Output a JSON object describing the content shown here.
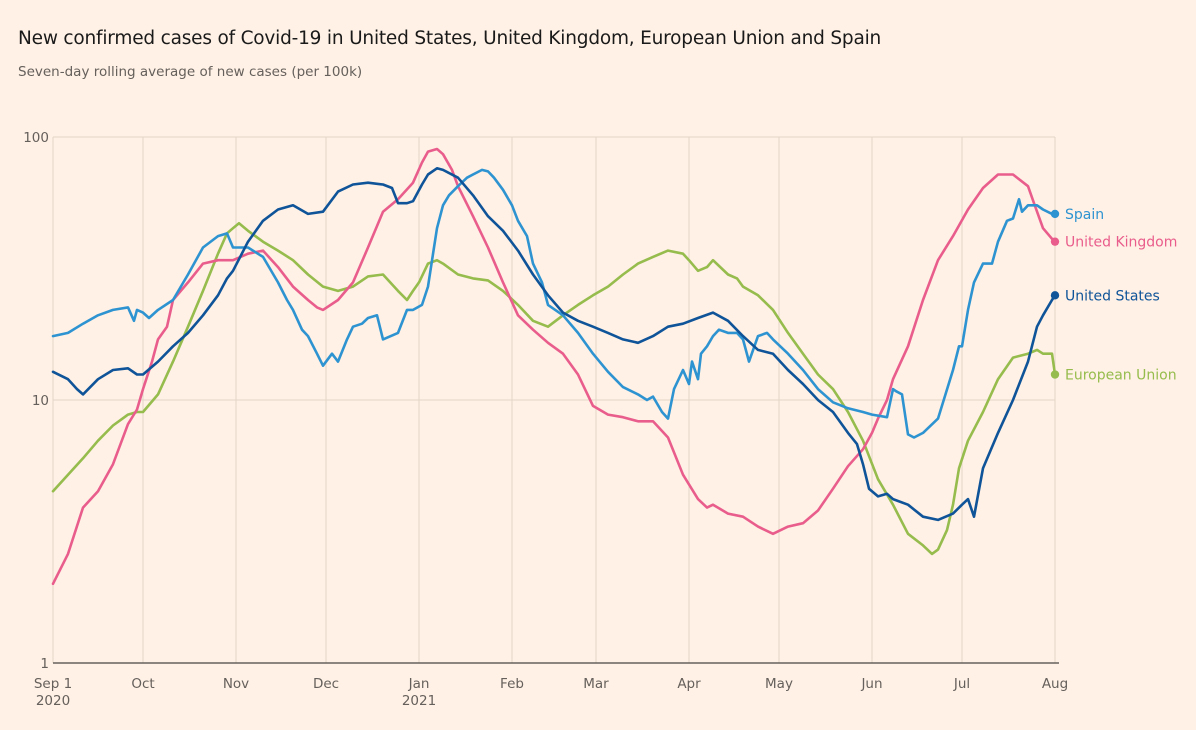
{
  "chart_data": {
    "type": "line",
    "title": "New confirmed cases of Covid-19 in United States, United Kingdom, European Union and Spain",
    "subtitle": "Seven-day rolling average of new cases (per 100k)",
    "xlabel": "",
    "ylabel": "",
    "yscale": "log",
    "ylim": [
      1,
      100
    ],
    "yticks": [
      {
        "value": 100,
        "label": "100"
      },
      {
        "value": 10,
        "label": "10"
      },
      {
        "value": 1,
        "label": "1"
      }
    ],
    "x_unit": "days since 2020-09-01",
    "xlim": [
      0,
      334
    ],
    "xticks": [
      {
        "day": 0,
        "label": "Sep 1",
        "sublabel": "2020"
      },
      {
        "day": 30,
        "label": "Oct",
        "sublabel": ""
      },
      {
        "day": 61,
        "label": "Nov",
        "sublabel": ""
      },
      {
        "day": 91,
        "label": "Dec",
        "sublabel": ""
      },
      {
        "day": 122,
        "label": "Jan",
        "sublabel": "2021"
      },
      {
        "day": 153,
        "label": "Feb",
        "sublabel": ""
      },
      {
        "day": 181,
        "label": "Mar",
        "sublabel": ""
      },
      {
        "day": 212,
        "label": "Apr",
        "sublabel": ""
      },
      {
        "day": 242,
        "label": "May",
        "sublabel": ""
      },
      {
        "day": 273,
        "label": "Jun",
        "sublabel": ""
      },
      {
        "day": 303,
        "label": "Jul",
        "sublabel": ""
      },
      {
        "day": 334,
        "label": "Aug",
        "sublabel": ""
      }
    ],
    "grid": true,
    "legend": "end-of-line labels (right)",
    "series": [
      {
        "name": "Spain",
        "color": "#2e93d1",
        "x": [
          0,
          5,
          10,
          15,
          20,
          25,
          27,
          28,
          30,
          32,
          35,
          40,
          45,
          50,
          55,
          58,
          60,
          62,
          65,
          70,
          75,
          78,
          80,
          83,
          85,
          88,
          90,
          93,
          95,
          98,
          100,
          103,
          105,
          108,
          110,
          115,
          118,
          120,
          123,
          125,
          127,
          128,
          130,
          132,
          135,
          138,
          140,
          143,
          145,
          147,
          150,
          153,
          155,
          158,
          160,
          163,
          165,
          170,
          175,
          180,
          185,
          190,
          195,
          198,
          200,
          203,
          205,
          207,
          210,
          212,
          213,
          215,
          216,
          218,
          220,
          222,
          225,
          228,
          230,
          232,
          235,
          238,
          240,
          245,
          250,
          255,
          260,
          265,
          270,
          273,
          278,
          280,
          281,
          283,
          285,
          287,
          290,
          295,
          300,
          302,
          303,
          305,
          307,
          310,
          313,
          315,
          318,
          320,
          322,
          323,
          325,
          328,
          330,
          333,
          334
        ],
        "y": [
          17.5,
          18,
          19.5,
          21,
          22,
          22.5,
          20,
          22,
          21.5,
          20.5,
          22,
          24,
          30,
          38,
          42,
          43,
          38,
          38,
          38,
          35,
          28,
          24,
          22,
          18.5,
          17.5,
          15,
          13.5,
          15,
          14,
          17,
          19,
          19.5,
          20.5,
          21,
          17,
          18,
          22,
          22,
          23,
          27,
          38,
          45,
          55,
          60,
          65,
          70,
          72,
          75,
          74,
          70,
          63,
          55,
          48,
          42,
          33,
          28,
          23,
          21,
          18,
          15,
          12.8,
          11.2,
          10.5,
          10,
          10.3,
          9,
          8.5,
          11,
          13,
          11.5,
          14,
          12,
          15,
          16,
          17.5,
          18.5,
          18,
          18,
          17,
          14,
          17.5,
          18,
          17,
          15,
          13,
          11,
          9.8,
          9.3,
          9,
          8.8,
          8.6,
          11,
          10.8,
          10.5,
          7.4,
          7.2,
          7.5,
          8.5,
          13,
          16,
          16,
          22,
          28,
          33,
          33,
          40,
          48,
          49,
          58,
          52,
          55,
          55,
          53,
          51,
          51
        ]
      },
      {
        "name": "United Kingdom",
        "color": "#e95d8c",
        "x": [
          0,
          5,
          10,
          15,
          20,
          25,
          28,
          30,
          33,
          35,
          38,
          40,
          45,
          50,
          55,
          58,
          60,
          65,
          70,
          75,
          80,
          85,
          88,
          90,
          95,
          100,
          105,
          110,
          115,
          120,
          123,
          125,
          128,
          130,
          133,
          135,
          140,
          145,
          150,
          155,
          160,
          165,
          170,
          175,
          180,
          185,
          190,
          195,
          200,
          205,
          210,
          215,
          218,
          220,
          225,
          230,
          235,
          240,
          245,
          250,
          255,
          260,
          265,
          270,
          273,
          275,
          278,
          280,
          285,
          290,
          295,
          300,
          305,
          310,
          315,
          320,
          325,
          327,
          330,
          333,
          334
        ],
        "y": [
          2.0,
          2.6,
          3.9,
          4.5,
          5.7,
          8.1,
          9.2,
          11,
          14,
          17,
          19,
          24,
          28,
          33,
          34,
          34,
          34,
          36,
          37,
          32,
          27,
          24,
          22.5,
          22,
          24,
          28,
          38,
          52,
          58,
          67,
          80,
          88,
          90,
          86,
          75,
          65,
          50,
          38,
          28,
          21,
          18.5,
          16.5,
          15,
          12.5,
          9.5,
          8.8,
          8.6,
          8.3,
          8.3,
          7.2,
          5.2,
          4.2,
          3.9,
          4,
          3.7,
          3.6,
          3.3,
          3.1,
          3.3,
          3.4,
          3.8,
          4.6,
          5.6,
          6.5,
          7.5,
          8.5,
          10,
          12,
          16,
          24,
          34,
          42,
          53,
          64,
          72,
          72,
          65,
          56,
          45,
          41,
          40
        ]
      },
      {
        "name": "United States",
        "color": "#0f5499",
        "x": [
          0,
          5,
          8,
          10,
          15,
          20,
          25,
          28,
          30,
          35,
          40,
          45,
          50,
          55,
          58,
          60,
          65,
          70,
          75,
          80,
          85,
          90,
          95,
          100,
          105,
          110,
          113,
          115,
          118,
          120,
          123,
          125,
          128,
          130,
          135,
          140,
          145,
          150,
          155,
          160,
          165,
          170,
          175,
          180,
          185,
          190,
          195,
          200,
          205,
          210,
          215,
          220,
          225,
          230,
          235,
          240,
          245,
          250,
          255,
          260,
          265,
          268,
          270,
          272,
          275,
          278,
          280,
          285,
          290,
          295,
          300,
          303,
          305,
          307,
          310,
          315,
          320,
          325,
          328,
          330,
          333,
          334
        ],
        "y": [
          12.8,
          12,
          11,
          10.5,
          12,
          13,
          13.2,
          12.5,
          12.5,
          14,
          16,
          18,
          21,
          25,
          29,
          31,
          40,
          48,
          53,
          55,
          51,
          52,
          62,
          66,
          67,
          66,
          64,
          56,
          56,
          57,
          66,
          72,
          76,
          75,
          70,
          60,
          50,
          44,
          37,
          30,
          25,
          21.5,
          20,
          19,
          18,
          17,
          16.5,
          17.5,
          19,
          19.5,
          20.5,
          21.5,
          20,
          17.5,
          15.5,
          15,
          13,
          11.5,
          10,
          9,
          7.5,
          6.8,
          5.7,
          4.6,
          4.3,
          4.4,
          4.2,
          4,
          3.6,
          3.5,
          3.7,
          4,
          4.2,
          3.6,
          5.5,
          7.5,
          10,
          14,
          19,
          21,
          24,
          25
        ]
      },
      {
        "name": "European Union",
        "color": "#96bc4d",
        "x": [
          0,
          5,
          10,
          15,
          20,
          25,
          28,
          30,
          35,
          40,
          45,
          50,
          55,
          58,
          60,
          62,
          65,
          70,
          75,
          80,
          85,
          90,
          95,
          100,
          105,
          110,
          115,
          118,
          120,
          122,
          125,
          128,
          130,
          135,
          140,
          145,
          150,
          155,
          160,
          165,
          170,
          175,
          180,
          185,
          190,
          195,
          200,
          205,
          210,
          212,
          215,
          218,
          220,
          225,
          228,
          230,
          235,
          240,
          245,
          250,
          255,
          260,
          265,
          270,
          275,
          280,
          285,
          290,
          293,
          295,
          298,
          300,
          302,
          305,
          310,
          315,
          320,
          325,
          328,
          330,
          333,
          334
        ],
        "y": [
          4.5,
          5.2,
          6,
          7,
          8,
          8.8,
          9,
          9,
          10.5,
          14,
          19,
          26,
          36,
          43,
          45,
          47,
          44,
          40,
          37,
          34,
          30,
          27,
          26,
          27,
          29.5,
          30,
          26,
          24,
          26,
          28,
          33,
          34,
          33,
          30,
          29,
          28.5,
          26,
          23,
          20,
          19,
          21,
          23,
          25,
          27,
          30,
          33,
          35,
          37,
          36,
          34,
          31,
          32,
          34,
          30,
          29,
          27,
          25,
          22,
          18,
          15,
          12.5,
          11,
          9,
          7,
          5,
          4,
          3.1,
          2.8,
          2.6,
          2.7,
          3.2,
          4,
          5.5,
          7,
          9,
          12,
          14.5,
          15,
          15.5,
          15,
          15,
          12.5
        ]
      }
    ],
    "end_labels": [
      {
        "name": "Spain",
        "value": 51
      },
      {
        "name": "United Kingdom",
        "value": 40
      },
      {
        "name": "United States",
        "value": 25
      },
      {
        "name": "European Union",
        "value": 12.5
      }
    ]
  }
}
